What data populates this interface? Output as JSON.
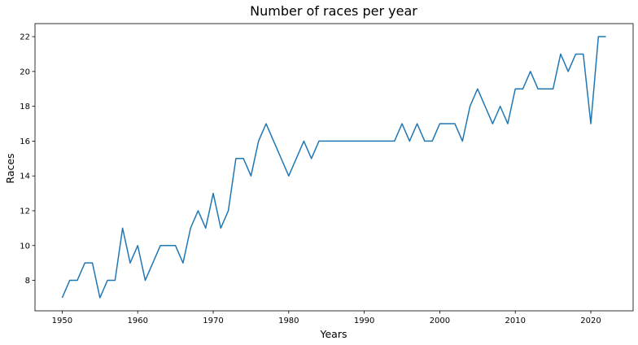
{
  "chart_data": {
    "type": "line",
    "title": "Number of races per year",
    "xlabel": "Years",
    "ylabel": "Races",
    "xlim": [
      1946.4,
      2025.6
    ],
    "ylim": [
      6.25,
      22.75
    ],
    "xticks": [
      1950,
      1960,
      1970,
      1980,
      1990,
      2000,
      2010,
      2020
    ],
    "yticks": [
      8,
      10,
      12,
      14,
      16,
      18,
      20,
      22
    ],
    "grid": false,
    "series": [
      {
        "color": "#1f77b4",
        "x": [
          1950,
          1951,
          1952,
          1953,
          1954,
          1955,
          1956,
          1957,
          1958,
          1959,
          1960,
          1961,
          1962,
          1963,
          1964,
          1965,
          1966,
          1967,
          1968,
          1969,
          1970,
          1971,
          1972,
          1973,
          1974,
          1975,
          1976,
          1977,
          1978,
          1979,
          1980,
          1981,
          1982,
          1983,
          1984,
          1985,
          1986,
          1987,
          1988,
          1989,
          1990,
          1991,
          1992,
          1993,
          1994,
          1995,
          1996,
          1997,
          1998,
          1999,
          2000,
          2001,
          2002,
          2003,
          2004,
          2005,
          2006,
          2007,
          2008,
          2009,
          2010,
          2011,
          2012,
          2013,
          2014,
          2015,
          2016,
          2017,
          2018,
          2019,
          2020,
          2021,
          2022
        ],
        "y": [
          7,
          8,
          8,
          9,
          9,
          7,
          8,
          8,
          11,
          9,
          10,
          8,
          9,
          10,
          10,
          10,
          9,
          11,
          12,
          11,
          13,
          11,
          12,
          15,
          15,
          14,
          16,
          17,
          16,
          15,
          14,
          15,
          16,
          15,
          16,
          16,
          16,
          16,
          16,
          16,
          16,
          16,
          16,
          16,
          16,
          17,
          16,
          17,
          16,
          16,
          17,
          17,
          17,
          16,
          18,
          19,
          18,
          17,
          18,
          17,
          19,
          19,
          20,
          19,
          19,
          19,
          21,
          20,
          21,
          21,
          17,
          22,
          22
        ]
      }
    ]
  }
}
